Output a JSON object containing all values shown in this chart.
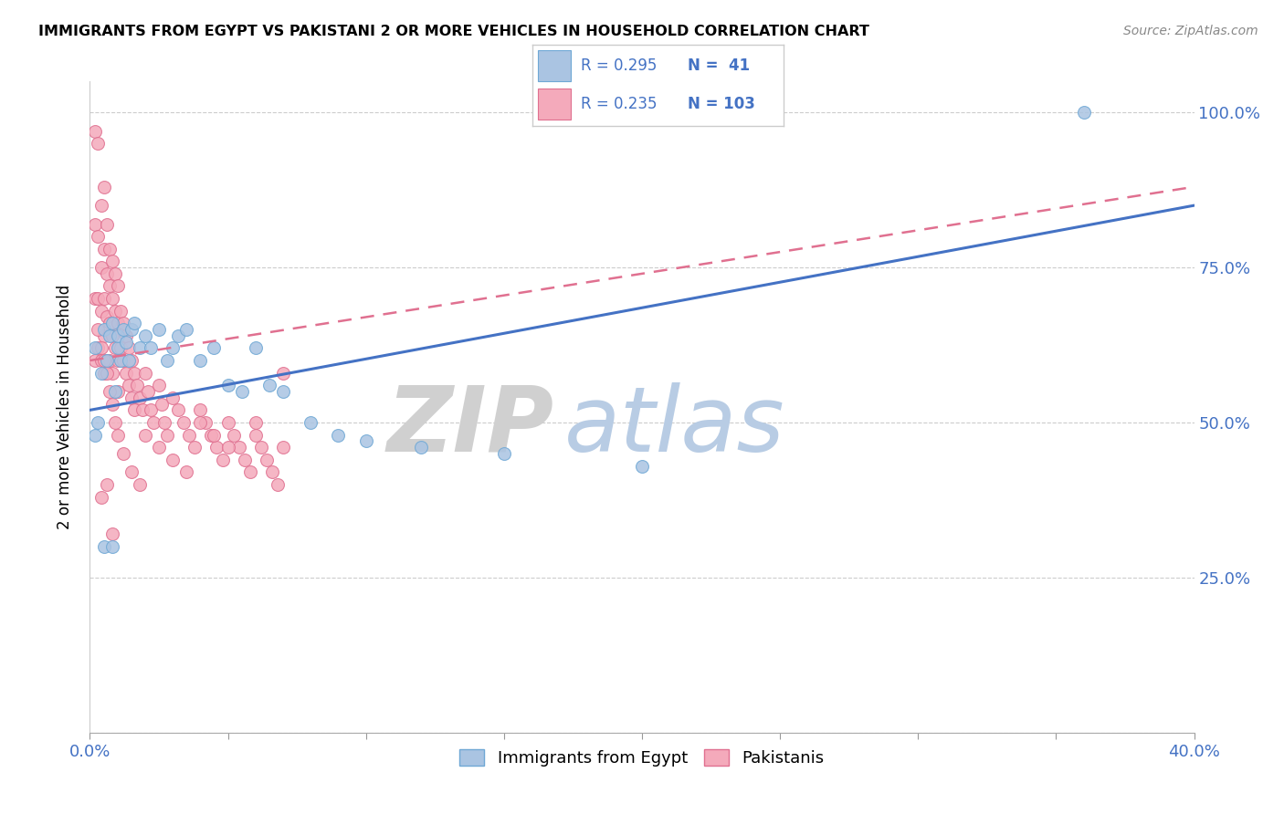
{
  "title": "IMMIGRANTS FROM EGYPT VS PAKISTANI 2 OR MORE VEHICLES IN HOUSEHOLD CORRELATION CHART",
  "source": "Source: ZipAtlas.com",
  "ylabel": "2 or more Vehicles in Household",
  "xlim": [
    0.0,
    0.4
  ],
  "ylim": [
    0.0,
    1.05
  ],
  "color_egypt": "#aac4e2",
  "color_pakistan": "#f4aabb",
  "color_egypt_edge": "#6fa8d5",
  "color_pakistan_edge": "#e07090",
  "color_line_egypt": "#4472c4",
  "color_line_pakistan": "#e07090",
  "watermark_zip_color": "#c0c0c0",
  "watermark_atlas_color": "#b8cce4",
  "egypt_x": [
    0.002,
    0.003,
    0.004,
    0.005,
    0.005,
    0.006,
    0.007,
    0.008,
    0.008,
    0.009,
    0.01,
    0.01,
    0.011,
    0.012,
    0.013,
    0.014,
    0.015,
    0.016,
    0.018,
    0.02,
    0.022,
    0.025,
    0.028,
    0.03,
    0.032,
    0.035,
    0.04,
    0.045,
    0.05,
    0.055,
    0.06,
    0.065,
    0.07,
    0.08,
    0.09,
    0.1,
    0.12,
    0.15,
    0.2,
    0.36,
    0.002
  ],
  "egypt_y": [
    0.62,
    0.5,
    0.58,
    0.65,
    0.3,
    0.6,
    0.64,
    0.66,
    0.3,
    0.55,
    0.62,
    0.64,
    0.6,
    0.65,
    0.63,
    0.6,
    0.65,
    0.66,
    0.62,
    0.64,
    0.62,
    0.65,
    0.6,
    0.62,
    0.64,
    0.65,
    0.6,
    0.62,
    0.56,
    0.55,
    0.62,
    0.56,
    0.55,
    0.5,
    0.48,
    0.47,
    0.46,
    0.45,
    0.43,
    1.0,
    0.48
  ],
  "pakistan_x": [
    0.002,
    0.002,
    0.002,
    0.002,
    0.003,
    0.003,
    0.003,
    0.003,
    0.004,
    0.004,
    0.004,
    0.004,
    0.005,
    0.005,
    0.005,
    0.005,
    0.005,
    0.006,
    0.006,
    0.006,
    0.006,
    0.007,
    0.007,
    0.007,
    0.007,
    0.008,
    0.008,
    0.008,
    0.008,
    0.009,
    0.009,
    0.009,
    0.01,
    0.01,
    0.01,
    0.01,
    0.011,
    0.011,
    0.012,
    0.012,
    0.013,
    0.013,
    0.014,
    0.014,
    0.015,
    0.015,
    0.016,
    0.016,
    0.017,
    0.018,
    0.019,
    0.02,
    0.021,
    0.022,
    0.023,
    0.025,
    0.026,
    0.027,
    0.028,
    0.03,
    0.032,
    0.034,
    0.036,
    0.038,
    0.04,
    0.042,
    0.044,
    0.046,
    0.048,
    0.05,
    0.052,
    0.054,
    0.056,
    0.058,
    0.06,
    0.062,
    0.064,
    0.066,
    0.068,
    0.07,
    0.003,
    0.004,
    0.005,
    0.006,
    0.007,
    0.008,
    0.009,
    0.01,
    0.012,
    0.015,
    0.018,
    0.02,
    0.025,
    0.03,
    0.035,
    0.04,
    0.045,
    0.05,
    0.06,
    0.07,
    0.004,
    0.006,
    0.008
  ],
  "pakistan_y": [
    0.97,
    0.82,
    0.7,
    0.6,
    0.95,
    0.8,
    0.7,
    0.62,
    0.85,
    0.75,
    0.68,
    0.6,
    0.88,
    0.78,
    0.7,
    0.64,
    0.58,
    0.82,
    0.74,
    0.67,
    0.6,
    0.78,
    0.72,
    0.66,
    0.6,
    0.76,
    0.7,
    0.64,
    0.58,
    0.74,
    0.68,
    0.62,
    0.72,
    0.66,
    0.6,
    0.55,
    0.68,
    0.62,
    0.66,
    0.6,
    0.64,
    0.58,
    0.62,
    0.56,
    0.6,
    0.54,
    0.58,
    0.52,
    0.56,
    0.54,
    0.52,
    0.58,
    0.55,
    0.52,
    0.5,
    0.56,
    0.53,
    0.5,
    0.48,
    0.54,
    0.52,
    0.5,
    0.48,
    0.46,
    0.52,
    0.5,
    0.48,
    0.46,
    0.44,
    0.5,
    0.48,
    0.46,
    0.44,
    0.42,
    0.48,
    0.46,
    0.44,
    0.42,
    0.4,
    0.46,
    0.65,
    0.62,
    0.6,
    0.58,
    0.55,
    0.53,
    0.5,
    0.48,
    0.45,
    0.42,
    0.4,
    0.48,
    0.46,
    0.44,
    0.42,
    0.5,
    0.48,
    0.46,
    0.5,
    0.58,
    0.38,
    0.4,
    0.32
  ],
  "egypt_line_x": [
    0.0,
    0.4
  ],
  "egypt_line_y": [
    0.52,
    0.85
  ],
  "pakistan_line_x": [
    0.0,
    0.4
  ],
  "pakistan_line_y": [
    0.6,
    0.88
  ]
}
